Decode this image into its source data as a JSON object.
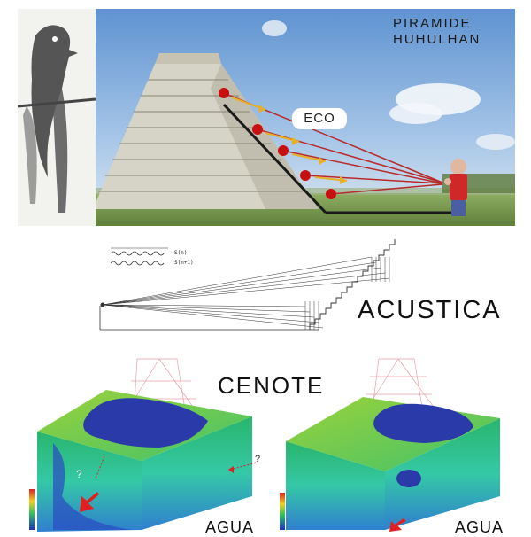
{
  "title_lines": [
    "PIRAMIDE",
    "HUHULHAN"
  ],
  "eco_label": "ECO",
  "acustica_label": "ACUSTICA",
  "cenote_label": "CENOTE",
  "agua_label": "AGUA",
  "signal_labels": [
    "S(n)",
    "S(n+1)"
  ],
  "question_mark": "?",
  "colors": {
    "sky": "#6f9fd6",
    "pyramid": "#cfcfc4",
    "grass": "#7a9a55",
    "echo_dot": "#c81010",
    "echo_line": "#c02828",
    "arrow": "#e8b028",
    "water": "#2a3aa8",
    "ground": "#35c27a",
    "surface": "#86c93a",
    "red_arrow": "#e02020"
  }
}
